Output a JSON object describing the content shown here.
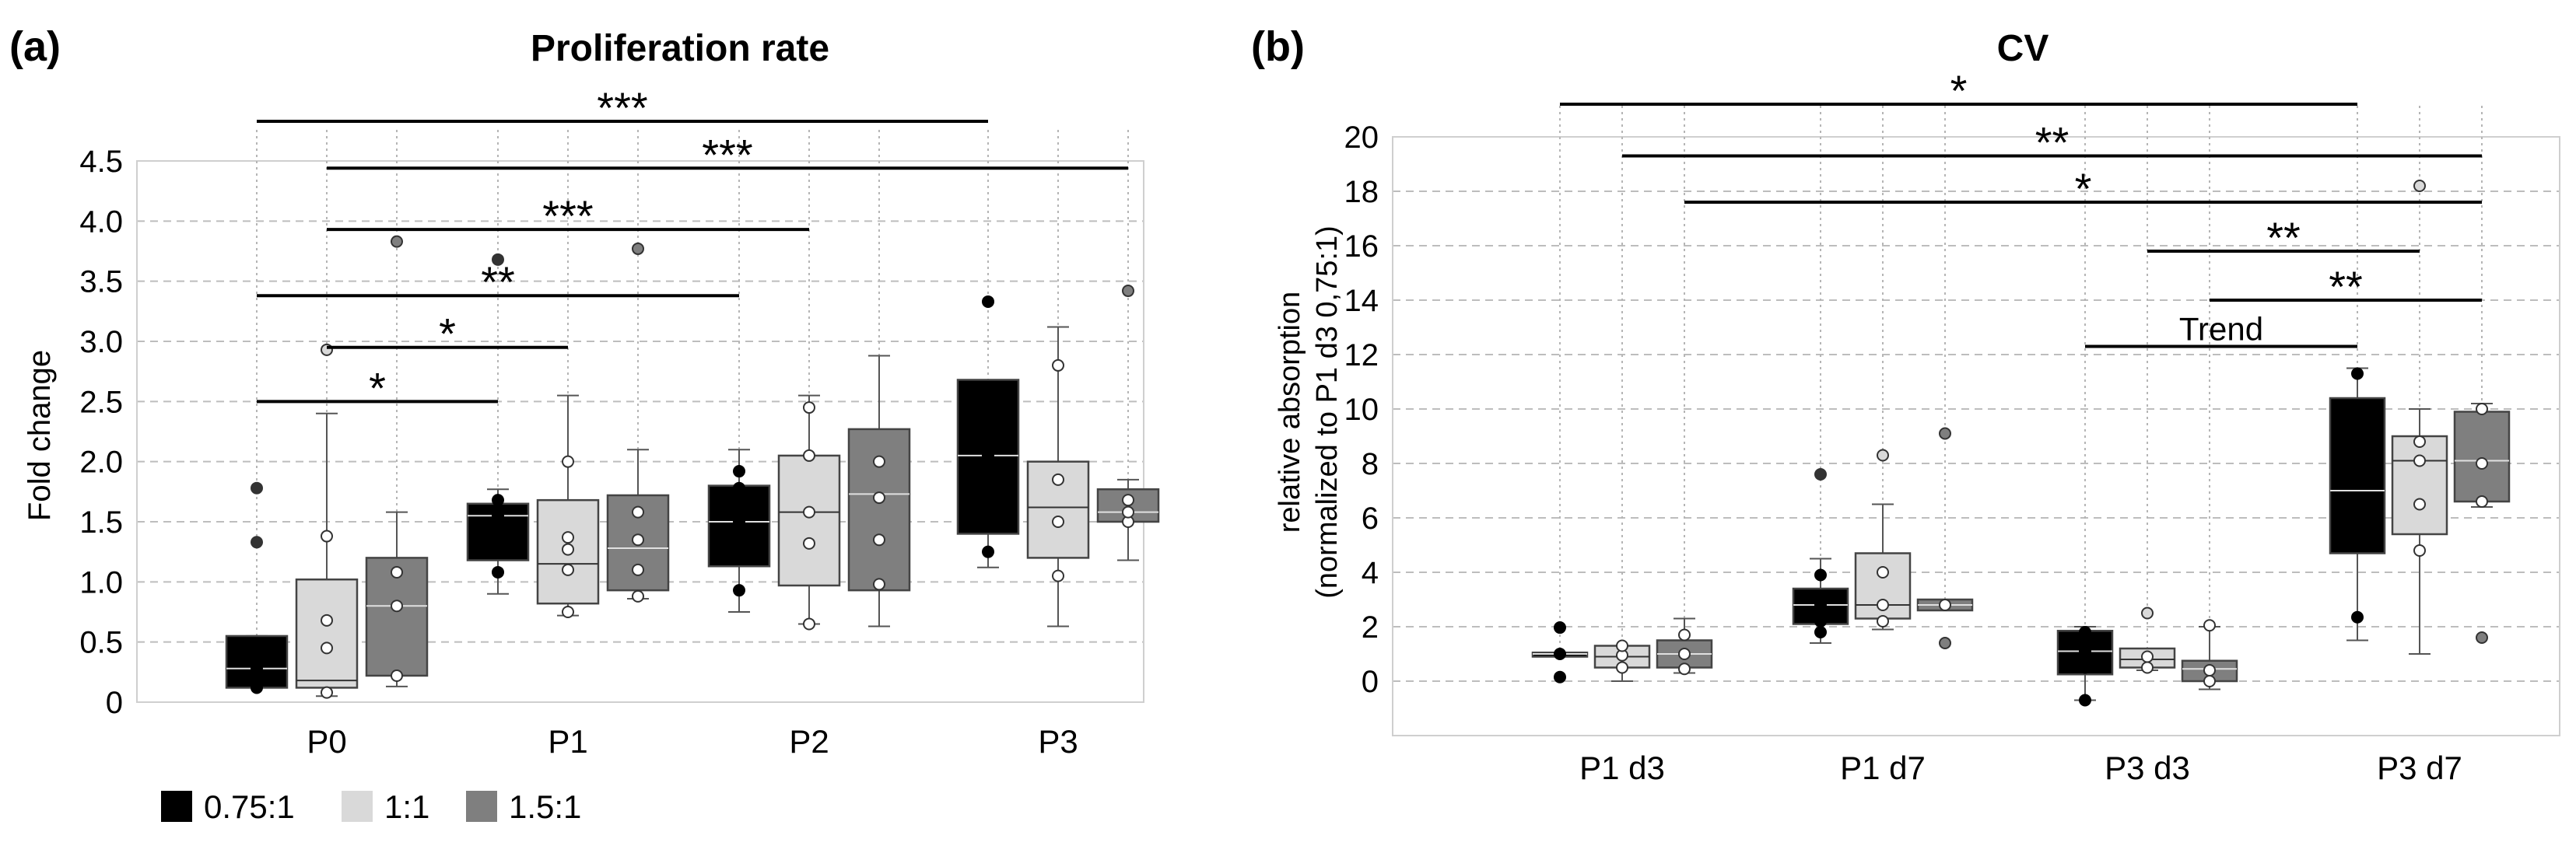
{
  "legend": [
    {
      "label": "0.75:1",
      "color": "#000000"
    },
    {
      "label": "1:1",
      "color": "#d9d9d9"
    },
    {
      "label": "1.5:1",
      "color": "#7f7f7f"
    }
  ],
  "chart_data": [
    {
      "type": "box",
      "panel_label": "(a)",
      "title": "Proliferation rate",
      "xlabel": "",
      "ylabel": "Fold change",
      "ylim": [
        0,
        4.5
      ],
      "yticks": [
        "0",
        "0.5",
        "1.0",
        "1.5",
        "2.0",
        "2.5",
        "3.0",
        "3.5",
        "4.0",
        "4.5"
      ],
      "ytick_values": [
        0,
        0.5,
        1.0,
        1.5,
        2.0,
        2.5,
        3.0,
        3.5,
        4.0,
        4.5
      ],
      "grid": true,
      "categories": [
        "P0",
        "P1",
        "P2",
        "P3"
      ],
      "series": [
        {
          "name": "0.75:1",
          "boxes": [
            {
              "wlo": 0.12,
              "q1": 0.12,
              "med": 0.28,
              "q3": 0.55,
              "whi": 0.55,
              "points": [
                0.12,
                0.28,
                0.45
              ],
              "outliers": [
                1.78,
                1.33
              ]
            },
            {
              "wlo": 0.9,
              "q1": 1.18,
              "med": 1.55,
              "q3": 1.65,
              "whi": 1.77,
              "points": [
                1.08,
                1.25,
                1.45,
                1.55,
                1.68
              ],
              "outliers": [
                3.68
              ]
            },
            {
              "wlo": 0.75,
              "q1": 1.13,
              "med": 1.5,
              "q3": 1.8,
              "whi": 2.1,
              "points": [
                0.93,
                1.2,
                1.5,
                1.78,
                1.92
              ],
              "outliers": []
            },
            {
              "wlo": 1.12,
              "q1": 1.4,
              "med": 2.05,
              "q3": 2.68,
              "whi": 2.68,
              "points": [
                1.25,
                1.57,
                2.05,
                3.33
              ],
              "outliers": []
            }
          ]
        },
        {
          "name": "1:1",
          "boxes": [
            {
              "wlo": 0.05,
              "q1": 0.12,
              "med": 0.18,
              "q3": 1.02,
              "whi": 2.4,
              "points": [
                0.08,
                0.45,
                0.68,
                1.38
              ],
              "outliers": [
                2.93
              ]
            },
            {
              "wlo": 0.72,
              "q1": 0.82,
              "med": 1.15,
              "q3": 1.68,
              "whi": 2.55,
              "points": [
                0.75,
                1.1,
                1.27,
                1.37,
                2.0
              ],
              "outliers": []
            },
            {
              "wlo": 0.65,
              "q1": 0.97,
              "med": 1.58,
              "q3": 2.05,
              "whi": 2.55,
              "points": [
                0.65,
                1.32,
                1.58,
                2.05,
                2.45
              ],
              "outliers": []
            },
            {
              "wlo": 0.63,
              "q1": 1.2,
              "med": 1.62,
              "q3": 2.0,
              "whi": 3.12,
              "points": [
                1.05,
                1.5,
                1.85,
                2.8
              ],
              "outliers": []
            }
          ]
        },
        {
          "name": "1.5:1",
          "boxes": [
            {
              "wlo": 0.13,
              "q1": 0.22,
              "med": 0.8,
              "q3": 1.2,
              "whi": 1.58,
              "points": [
                0.22,
                0.8,
                1.08
              ],
              "outliers": [
                3.83
              ]
            },
            {
              "wlo": 0.86,
              "q1": 0.93,
              "med": 1.28,
              "q3": 1.72,
              "whi": 2.1,
              "points": [
                0.88,
                1.1,
                1.35,
                1.58
              ],
              "outliers": [
                3.77
              ]
            },
            {
              "wlo": 0.63,
              "q1": 0.93,
              "med": 1.73,
              "q3": 2.27,
              "whi": 2.88,
              "points": [
                0.98,
                1.35,
                1.7,
                2.0
              ],
              "outliers": []
            },
            {
              "wlo": 1.18,
              "q1": 1.5,
              "med": 1.58,
              "q3": 1.77,
              "whi": 1.85,
              "points": [
                1.5,
                1.58,
                1.68
              ],
              "outliers": [
                3.42
              ]
            }
          ]
        }
      ],
      "annotations": [
        {
          "text": "***",
          "from": "P0 0.75:1",
          "to": "P3 0.75:1",
          "y": 4.83
        },
        {
          "text": "***",
          "from": "P0 1:1",
          "to": "P3 1.5:1",
          "y": 4.44
        },
        {
          "text": "***",
          "from": "P0 1:1",
          "to": "P2 1:1",
          "y": 3.93
        },
        {
          "text": "**",
          "from": "P0 0.75:1",
          "to": "P2 0.75:1",
          "y": 3.38
        },
        {
          "text": "*",
          "from": "P0 1:1",
          "to": "P1 1:1",
          "y": 2.95
        },
        {
          "text": "*",
          "from": "P0 0.75:1",
          "to": "P1 0.75:1",
          "y": 2.5
        }
      ]
    },
    {
      "type": "box",
      "panel_label": "(b)",
      "title": "CV",
      "xlabel": "",
      "ylabel": "relative absorption",
      "ylabel2": "(normalized to P1 d3 0,75:1)",
      "ylim": [
        -2,
        20
      ],
      "yticks": [
        "0",
        "2",
        "4",
        "6",
        "8",
        "10",
        "12",
        "14",
        "16",
        "18",
        "20"
      ],
      "ytick_values": [
        0,
        2,
        4,
        6,
        8,
        10,
        12,
        14,
        16,
        18,
        20
      ],
      "grid": true,
      "categories": [
        "P1 d3",
        "P1 d7",
        "P3 d3",
        "P3 d7"
      ],
      "series": [
        {
          "name": "0.75:1",
          "boxes": [
            {
              "wlo": 0.9,
              "q1": 0.9,
              "med": 1.0,
              "q3": 1.05,
              "whi": 1.05,
              "points": [
                0.15,
                1.0,
                1.97
              ],
              "outliers": []
            },
            {
              "wlo": 1.4,
              "q1": 2.1,
              "med": 2.8,
              "q3": 3.4,
              "whi": 4.5,
              "points": [
                1.8,
                2.2,
                2.8,
                3.9
              ],
              "outliers": [
                7.6
              ]
            },
            {
              "wlo": -0.7,
              "q1": 0.25,
              "med": 1.1,
              "q3": 1.85,
              "whi": 2.0,
              "points": [
                -0.7,
                0.5,
                1.1,
                1.8
              ],
              "outliers": []
            },
            {
              "wlo": 1.5,
              "q1": 4.7,
              "med": 7.0,
              "q3": 10.4,
              "whi": 11.5,
              "points": [
                2.35,
                5.3,
                5.8,
                8.0,
                10.0,
                11.3
              ],
              "outliers": []
            }
          ]
        },
        {
          "name": "1:1",
          "boxes": [
            {
              "wlo": 0.0,
              "q1": 0.5,
              "med": 0.9,
              "q3": 1.3,
              "whi": 1.3,
              "points": [
                0.5,
                0.95,
                1.3
              ],
              "outliers": []
            },
            {
              "wlo": 1.9,
              "q1": 2.3,
              "med": 2.8,
              "q3": 4.7,
              "whi": 6.5,
              "points": [
                2.2,
                2.8,
                4.0
              ],
              "outliers": [
                8.3
              ]
            },
            {
              "wlo": 0.4,
              "q1": 0.5,
              "med": 0.8,
              "q3": 1.2,
              "whi": 1.2,
              "points": [
                0.5,
                0.9
              ],
              "outliers": [
                2.5
              ]
            },
            {
              "wlo": 1.0,
              "q1": 5.4,
              "med": 8.1,
              "q3": 9.0,
              "whi": 10.0,
              "points": [
                4.8,
                6.5,
                8.1,
                8.8
              ],
              "outliers": [
                18.2
              ]
            }
          ]
        },
        {
          "name": "1.5:1",
          "boxes": [
            {
              "wlo": 0.3,
              "q1": 0.5,
              "med": 1.0,
              "q3": 1.5,
              "whi": 2.3,
              "points": [
                0.45,
                1.0,
                1.7
              ],
              "outliers": []
            },
            {
              "wlo": 2.6,
              "q1": 2.6,
              "med": 2.8,
              "q3": 3.0,
              "whi": 3.0,
              "points": [
                2.8
              ],
              "outliers": [
                9.1,
                1.4
              ]
            },
            {
              "wlo": -0.3,
              "q1": 0.0,
              "med": 0.45,
              "q3": 0.75,
              "whi": 2.0,
              "points": [
                0.0,
                0.4,
                2.05
              ],
              "outliers": []
            },
            {
              "wlo": 6.4,
              "q1": 6.6,
              "med": 8.1,
              "q3": 9.9,
              "whi": 10.2,
              "points": [
                6.6,
                8.0,
                10.0
              ],
              "outliers": [
                1.6
              ]
            }
          ]
        }
      ],
      "annotations": [
        {
          "text": "*",
          "from": "P1 d3 0.75:1",
          "to": "P3 d7 0.75:1",
          "y": 21.2
        },
        {
          "text": "**",
          "from": "P1 d3 1:1",
          "to": "P3 d7 1.5:1",
          "y": 19.3
        },
        {
          "text": "*",
          "from": "P1 d3 1.5:1",
          "to": "P3 d7 1.5:1",
          "y": 17.6
        },
        {
          "text": "**",
          "from": "P3 d3 1:1",
          "to": "P3 d7 1:1",
          "y": 15.8
        },
        {
          "text": "**",
          "from": "P3 d3 1.5:1",
          "to": "P3 d7 1.5:1",
          "y": 14.0
        },
        {
          "text": "Trend",
          "from": "P3 d3 0.75:1",
          "to": "P3 d7 0.75:1",
          "y": 12.3
        }
      ]
    }
  ]
}
